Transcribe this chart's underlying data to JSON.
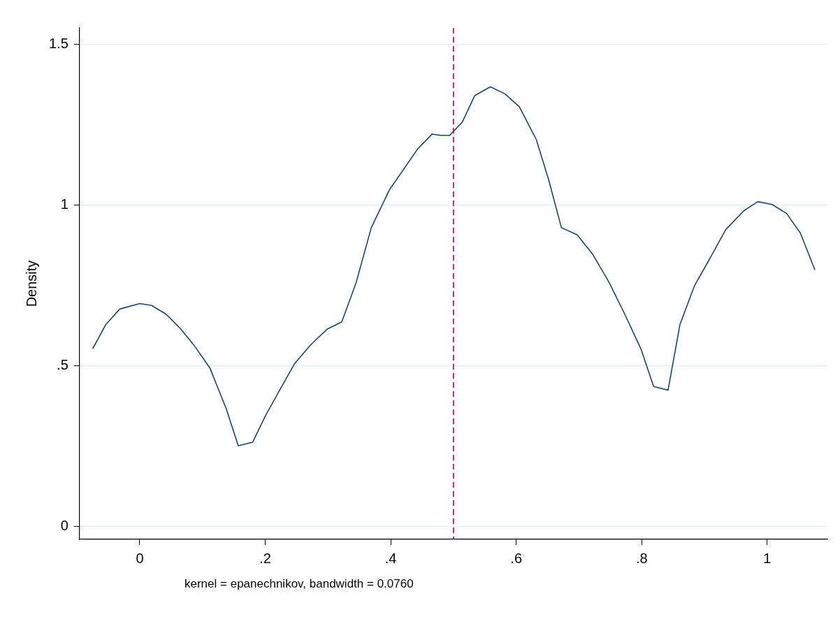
{
  "chart_data": {
    "type": "line",
    "ylabel": "Density",
    "annotations": [
      "kernel = epanechnikov, bandwidth = 0.0760"
    ],
    "x": [
      -0.075,
      -0.054,
      -0.032,
      0,
      0.019,
      0.042,
      0.064,
      0.087,
      0.112,
      0.138,
      0.157,
      0.18,
      0.2,
      0.223,
      0.247,
      0.273,
      0.299,
      0.322,
      0.345,
      0.369,
      0.398,
      0.42,
      0.443,
      0.466,
      0.48,
      0.494,
      0.514,
      0.534,
      0.559,
      0.582,
      0.605,
      0.632,
      0.652,
      0.672,
      0.697,
      0.722,
      0.748,
      0.773,
      0.799,
      0.819,
      0.842,
      0.861,
      0.884,
      0.906,
      0.934,
      0.963,
      0.985,
      1.008,
      1.031,
      1.053,
      1.076
    ],
    "series": [
      {
        "color": "#1a476f",
        "values": [
          0.553,
          0.628,
          0.676,
          0.693,
          0.687,
          0.66,
          0.617,
          0.562,
          0.492,
          0.365,
          0.251,
          0.262,
          0.343,
          0.424,
          0.507,
          0.566,
          0.614,
          0.636,
          0.759,
          0.929,
          1.047,
          1.109,
          1.174,
          1.22,
          1.216,
          1.216,
          1.257,
          1.34,
          1.367,
          1.345,
          1.305,
          1.203,
          1.076,
          0.929,
          0.907,
          0.846,
          0.759,
          0.66,
          0.551,
          0.435,
          0.424,
          0.628,
          0.748,
          0.824,
          0.923,
          0.982,
          1.01,
          1.001,
          0.973,
          0.912,
          0.798
        ]
      }
    ],
    "xlim": [
      -0.096,
      1.096
    ],
    "ylim": [
      -0.04,
      1.55
    ],
    "xticks": [
      0,
      {
        "value": 0.2,
        "label": ".2"
      },
      {
        "value": 0.4,
        "label": ".4"
      },
      {
        "value": 0.6,
        "label": ".6"
      },
      {
        "value": 0.8,
        "label": ".8"
      },
      1
    ],
    "yticks": [
      0,
      {
        "value": 0.5,
        "label": ".5"
      },
      1,
      1.5
    ],
    "ref_lines": [
      {
        "axis": "x",
        "value": 0.5,
        "color": "#c10534",
        "line_style": "dashed"
      }
    ],
    "grid": "y",
    "legend": false,
    "marker": "none",
    "line_style": "solid"
  }
}
